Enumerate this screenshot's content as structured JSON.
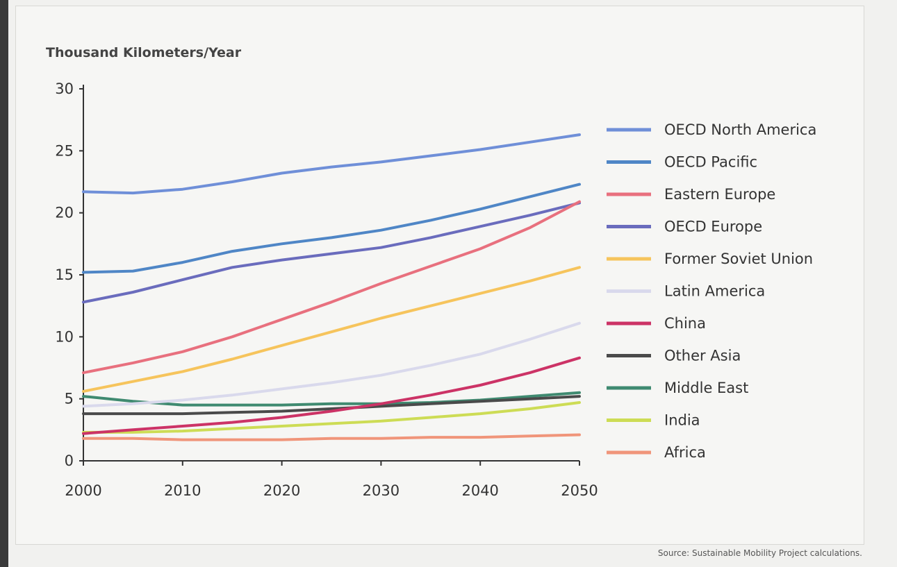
{
  "chart_data": {
    "type": "line",
    "title": "",
    "xlabel": "",
    "ylabel": "Thousand Kilometers/Year",
    "xlim": [
      2000,
      2050
    ],
    "ylim": [
      0,
      30
    ],
    "x_ticks": [
      2000,
      2010,
      2020,
      2030,
      2040,
      2050
    ],
    "y_ticks": [
      0,
      5,
      10,
      15,
      20,
      25,
      30
    ],
    "grid": false,
    "legend_position": "right",
    "x": [
      2000,
      2005,
      2010,
      2015,
      2020,
      2025,
      2030,
      2035,
      2040,
      2045,
      2050
    ],
    "series": [
      {
        "name": "OECD North America",
        "color": "#6f8fd8",
        "values": [
          21.7,
          21.6,
          21.9,
          22.5,
          23.2,
          23.7,
          24.1,
          24.6,
          25.1,
          25.7,
          26.3
        ]
      },
      {
        "name": "OECD Pacific",
        "color": "#4f86c6",
        "values": [
          15.2,
          15.3,
          16.0,
          16.9,
          17.5,
          18.0,
          18.6,
          19.4,
          20.3,
          21.3,
          22.3
        ]
      },
      {
        "name": "Eastern Europe",
        "color": "#e8707e",
        "values": [
          7.1,
          7.9,
          8.8,
          10.0,
          11.4,
          12.8,
          14.3,
          15.7,
          17.1,
          18.8,
          20.9
        ]
      },
      {
        "name": "OECD Europe",
        "color": "#6a6cbd",
        "values": [
          12.8,
          13.6,
          14.6,
          15.6,
          16.2,
          16.7,
          17.2,
          18.0,
          18.9,
          19.8,
          20.8
        ]
      },
      {
        "name": "Former Soviet Union",
        "color": "#f6c45c",
        "values": [
          5.6,
          6.4,
          7.2,
          8.2,
          9.3,
          10.4,
          11.5,
          12.5,
          13.5,
          14.5,
          15.6
        ]
      },
      {
        "name": "Latin America",
        "color": "#d9d9ec",
        "values": [
          4.4,
          4.6,
          4.9,
          5.3,
          5.8,
          6.3,
          6.9,
          7.7,
          8.6,
          9.8,
          11.1
        ]
      },
      {
        "name": "China",
        "color": "#cc3366",
        "values": [
          2.2,
          2.5,
          2.8,
          3.1,
          3.5,
          4.0,
          4.6,
          5.3,
          6.1,
          7.1,
          8.3
        ]
      },
      {
        "name": "Other Asia",
        "color": "#4a4a4a",
        "values": [
          3.8,
          3.8,
          3.8,
          3.9,
          4.0,
          4.2,
          4.4,
          4.6,
          4.8,
          5.0,
          5.2
        ]
      },
      {
        "name": "Middle East",
        "color": "#3f8a70",
        "values": [
          5.2,
          4.8,
          4.5,
          4.5,
          4.5,
          4.6,
          4.6,
          4.7,
          4.9,
          5.2,
          5.5
        ]
      },
      {
        "name": "India",
        "color": "#cddc55",
        "values": [
          2.3,
          2.3,
          2.4,
          2.6,
          2.8,
          3.0,
          3.2,
          3.5,
          3.8,
          4.2,
          4.7
        ]
      },
      {
        "name": "Africa",
        "color": "#f0957a",
        "values": [
          1.8,
          1.8,
          1.7,
          1.7,
          1.7,
          1.8,
          1.8,
          1.9,
          1.9,
          2.0,
          2.1
        ]
      }
    ]
  },
  "source_note": "Source: Sustainable Mobility Project calculations."
}
